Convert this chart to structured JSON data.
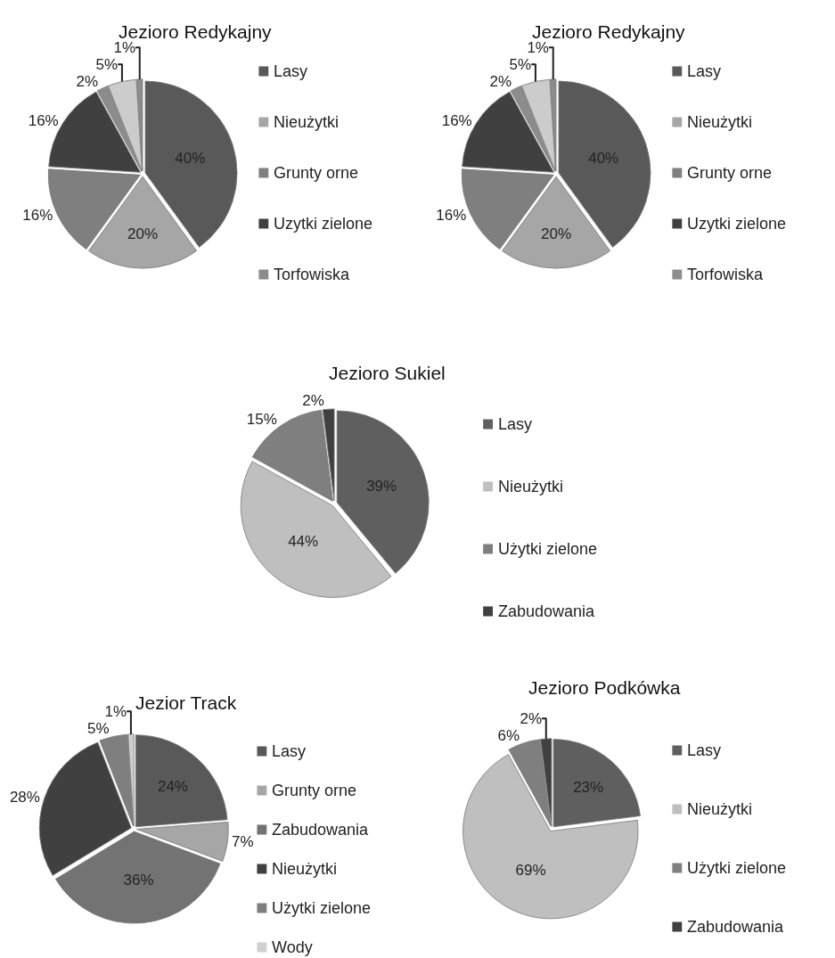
{
  "chart_data": [
    {
      "type": "pie",
      "title": "Jezioro Redykajny",
      "categories": [
        "Lasy",
        "Nieużytki",
        "Grunty orne",
        "Uzytki zielone",
        "Torfowiska",
        null,
        null
      ],
      "values": [
        40,
        20,
        16,
        16,
        2,
        5,
        1
      ],
      "colors": [
        "#595959",
        "#a6a6a6",
        "#7f7f7f",
        "#404040",
        "#8c8c8c",
        "#cccccc",
        "#8c8c8c"
      ],
      "value_labels": [
        "40%",
        "20%",
        "16%",
        "16%",
        "2%",
        "5%",
        "1%"
      ],
      "legend": "right"
    },
    {
      "type": "pie",
      "title": "Jezioro Redykajny",
      "categories": [
        "Lasy",
        "Nieużytki",
        "Grunty orne",
        "Uzytki zielone",
        "Torfowiska",
        null,
        null
      ],
      "values": [
        40,
        20,
        16,
        16,
        2,
        5,
        1
      ],
      "colors": [
        "#595959",
        "#a6a6a6",
        "#7f7f7f",
        "#404040",
        "#8c8c8c",
        "#cccccc",
        "#8c8c8c"
      ],
      "value_labels": [
        "40%",
        "20%",
        "16%",
        "16%",
        "2%",
        "5%",
        "1%"
      ],
      "legend": "right"
    },
    {
      "type": "pie",
      "title": "Jezioro Sukiel",
      "categories": [
        "Lasy",
        "Nieużytki",
        "Użytki zielone",
        "Zabudowania"
      ],
      "values": [
        39,
        44,
        15,
        2
      ],
      "colors": [
        "#5f5f5f",
        "#bfbfbf",
        "#7f7f7f",
        "#404040"
      ],
      "value_labels": [
        "39%",
        "44%",
        "15%",
        "2%"
      ],
      "legend": "right"
    },
    {
      "type": "pie",
      "title": "Jezior Track",
      "categories": [
        "Lasy",
        "Grunty orne",
        "Zabudowania",
        "Nieużytki",
        "Użytki zielone",
        "Wody"
      ],
      "values": [
        24,
        7,
        36,
        28,
        5,
        1
      ],
      "colors": [
        "#595959",
        "#a6a6a6",
        "#737373",
        "#404040",
        "#7f7f7f",
        "#d0d0d0"
      ],
      "value_labels": [
        "24%",
        "7%",
        "36%",
        "28%",
        "5%",
        "1%"
      ],
      "legend": "right"
    },
    {
      "type": "pie",
      "title": "Jezioro Podkówka",
      "categories": [
        "Lasy",
        "Nieużytki",
        "Użytki zielone",
        "Zabudowania"
      ],
      "values": [
        23,
        69,
        6,
        2
      ],
      "colors": [
        "#5f5f5f",
        "#bfbfbf",
        "#7f7f7f",
        "#404040"
      ],
      "value_labels": [
        "23%",
        "69%",
        "6%",
        "2%"
      ],
      "legend": "right"
    }
  ]
}
